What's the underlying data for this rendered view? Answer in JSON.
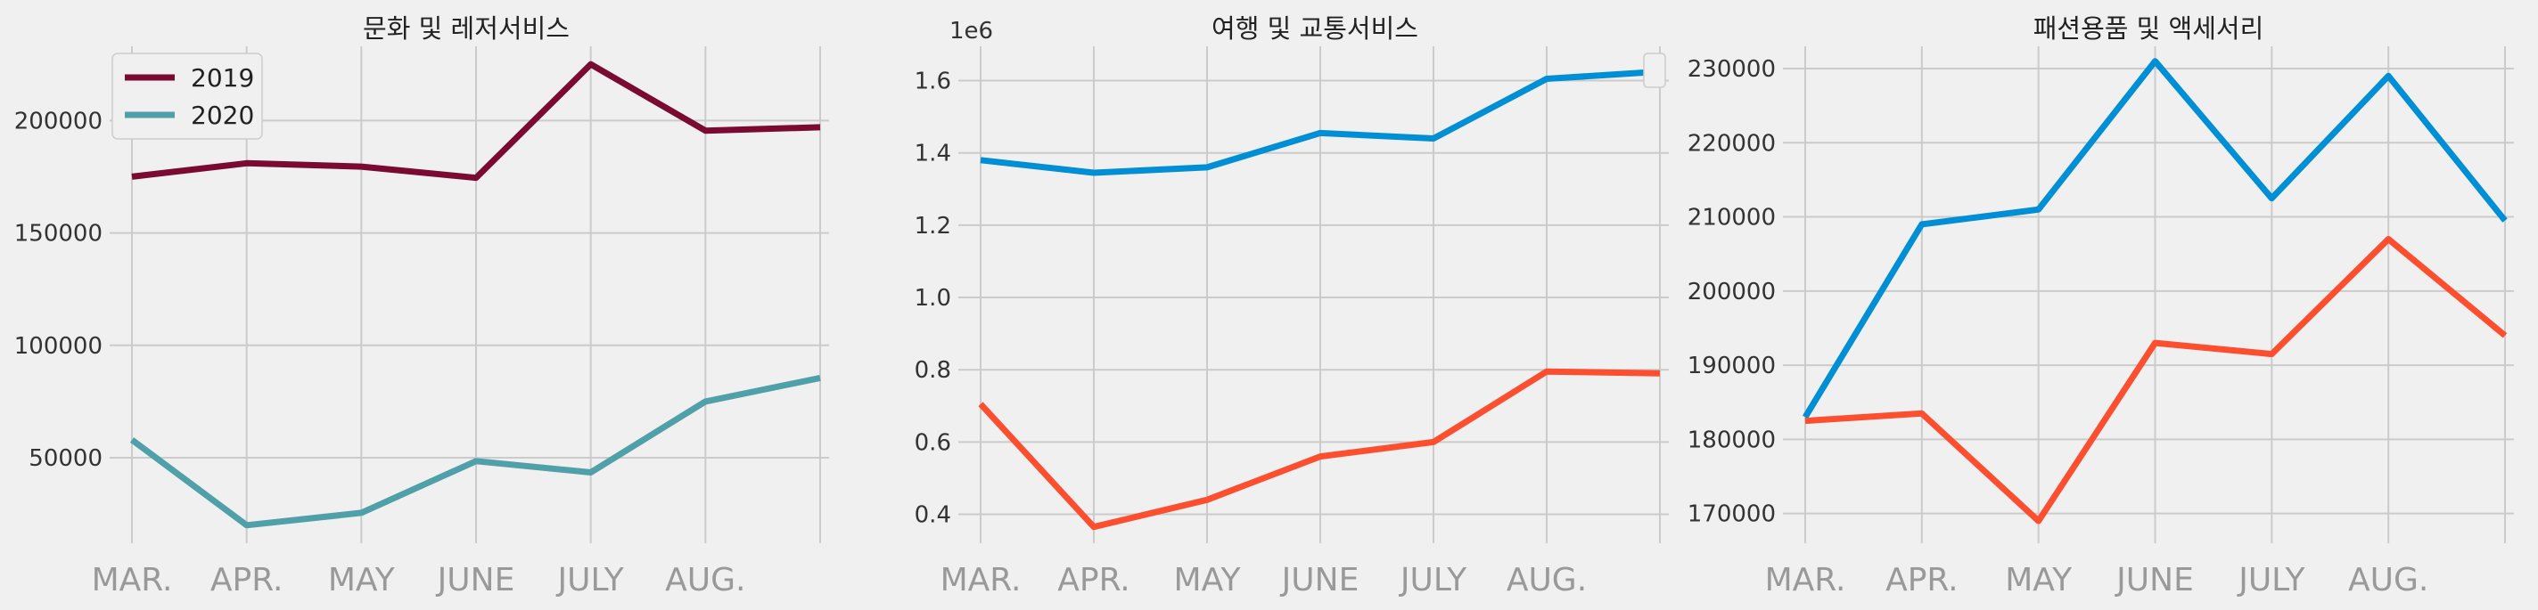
{
  "chart_data": [
    {
      "type": "line",
      "title": "문화 및 레저서비스",
      "x": [
        "MAR.",
        "APR.",
        "MAY",
        "JUNE",
        "JULY",
        "AUG.",
        ""
      ],
      "xticks": [
        "MAR.",
        "APR.",
        "MAY",
        "JUNE",
        "JULY",
        "AUG.",
        ""
      ],
      "yticks": [
        50000,
        100000,
        150000,
        200000
      ],
      "ytick_labels": [
        "50000",
        "100000",
        "150000",
        "200000"
      ],
      "ylim": [
        12000,
        233000
      ],
      "grid": true,
      "legend": {
        "position": "top-left",
        "entries": [
          "2019",
          "2020"
        ]
      },
      "series": [
        {
          "name": "2019",
          "color": "#7a0a31",
          "values": [
            175000,
            181000,
            179500,
            174500,
            225000,
            195500,
            197000
          ]
        },
        {
          "name": "2020",
          "color": "#4fa0a8",
          "values": [
            58000,
            20000,
            25500,
            48500,
            43500,
            75000,
            85500
          ]
        }
      ]
    },
    {
      "type": "line",
      "title": "여행 및 교통서비스",
      "scale_label": "1e6",
      "x": [
        "MAR.",
        "APR.",
        "MAY",
        "JUNE",
        "JULY",
        "AUG.",
        ""
      ],
      "xticks": [
        "MAR.",
        "APR.",
        "MAY",
        "JUNE",
        "JULY",
        "AUG.",
        ""
      ],
      "yticks": [
        0.4,
        0.6,
        0.8,
        1.0,
        1.2,
        1.4,
        1.6
      ],
      "ytick_labels": [
        "0.4",
        "0.6",
        "0.8",
        "1.0",
        "1.2",
        "1.4",
        "1.6"
      ],
      "ylim": [
        0.32,
        1.695
      ],
      "grid": true,
      "legend": {
        "position": "top-right",
        "entries": []
      },
      "series": [
        {
          "color": "#008fd5",
          "values": [
            1.38,
            1.345,
            1.36,
            1.455,
            1.44,
            1.605,
            1.625
          ]
        },
        {
          "color": "#fc4f30",
          "values": [
            0.705,
            0.365,
            0.44,
            0.56,
            0.6,
            0.795,
            0.79
          ]
        }
      ]
    },
    {
      "type": "line",
      "title": "패션용품 및 액세서리",
      "x": [
        "MAR.",
        "APR.",
        "MAY",
        "JUNE",
        "JULY",
        "AUG.",
        ""
      ],
      "xticks": [
        "MAR.",
        "APR.",
        "MAY",
        "JUNE",
        "JULY",
        "AUG.",
        ""
      ],
      "yticks": [
        170000,
        180000,
        190000,
        200000,
        210000,
        220000,
        230000
      ],
      "ytick_labels": [
        "170000",
        "180000",
        "190000",
        "200000",
        "210000",
        "220000",
        "230000"
      ],
      "ylim": [
        166000,
        233000
      ],
      "grid": true,
      "legend": null,
      "series": [
        {
          "color": "#008fd5",
          "values": [
            183000,
            209000,
            211000,
            231000,
            212500,
            229000,
            209500
          ]
        },
        {
          "color": "#fc4f30",
          "values": [
            182500,
            183500,
            169000,
            193000,
            191500,
            207000,
            194000
          ]
        }
      ]
    }
  ]
}
